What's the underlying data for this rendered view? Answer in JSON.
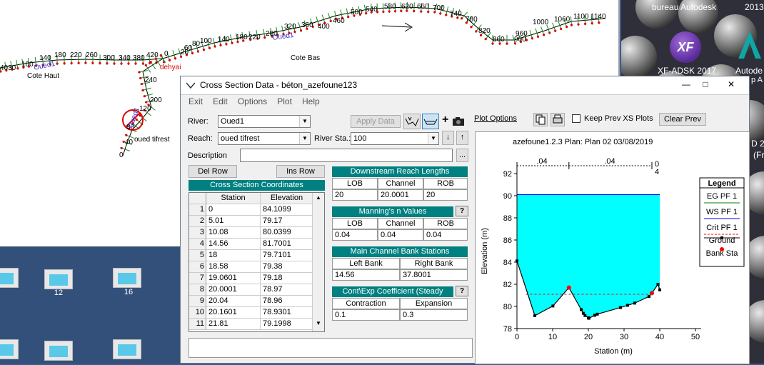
{
  "schematic": {
    "station_labels": [
      "4030",
      "100",
      "140",
      "180",
      "220",
      "260",
      "300",
      "340",
      "380",
      "420",
      "0",
      "20",
      "60",
      "80",
      "100",
      "140",
      "180",
      "220",
      "280",
      "320",
      "360",
      "400",
      "460",
      "500",
      "540",
      "580",
      "620",
      "660",
      "700",
      "740",
      "780",
      "820",
      "860",
      "900",
      "960",
      "1000",
      "1060",
      "1100",
      "1140",
      "240",
      "200",
      "120",
      "80",
      "40",
      "0"
    ],
    "oued_labels": [
      "Oued1",
      "Oued1",
      "Oued1"
    ],
    "cote_haut": "Cote Haut",
    "cote_bas": "Cote Bas",
    "junction": "dehyai",
    "tributary": "oued tifrest"
  },
  "desktop": {
    "icons": [
      {
        "label": ""
      },
      {
        "label": "12"
      },
      {
        "label": "16"
      },
      {
        "label": ""
      },
      {
        "label": ""
      },
      {
        "label": ""
      }
    ],
    "right_top_left": "bureau Autodesk",
    "right_top_right": "2013",
    "xf_label": "XF-ADSK 2017",
    "autode_label": "Autode",
    "autode_label2": "p A",
    "side_text1": "D 2",
    "side_text2": "(Fr",
    "xf_badge": "XF"
  },
  "dialog": {
    "title": "Cross Section Data - béton_azefoune123",
    "menu": [
      "Exit",
      "Edit",
      "Options",
      "Plot",
      "Help"
    ],
    "river_label": "River:",
    "river_value": "Oued1",
    "reach_label": "Reach:",
    "reach_value": "oued tifrest",
    "river_sta_label": "River Sta.:",
    "river_sta_value": "100",
    "apply_data": "Apply Data",
    "description_label": "Description",
    "del_row": "Del Row",
    "ins_row": "Ins Row",
    "xs_coords_title": "Cross Section Coordinates",
    "col_station": "Station",
    "col_elevation": "Elevation",
    "rows": [
      {
        "n": "1",
        "station": "0",
        "elev": "84.1099"
      },
      {
        "n": "2",
        "station": "5.01",
        "elev": "79.17"
      },
      {
        "n": "3",
        "station": "10.08",
        "elev": "80.0399"
      },
      {
        "n": "4",
        "station": "14.56",
        "elev": "81.7001"
      },
      {
        "n": "5",
        "station": "18",
        "elev": "79.7101"
      },
      {
        "n": "6",
        "station": "18.58",
        "elev": "79.38"
      },
      {
        "n": "7",
        "station": "19.0601",
        "elev": "79.18"
      },
      {
        "n": "8",
        "station": "20.0001",
        "elev": "78.97"
      },
      {
        "n": "9",
        "station": "20.04",
        "elev": "78.96"
      },
      {
        "n": "10",
        "station": "20.1601",
        "elev": "78.9301"
      },
      {
        "n": "11",
        "station": "21.81",
        "elev": "79.1998"
      }
    ],
    "downstream_title": "Downstream Reach Lengths",
    "lob": "LOB",
    "channel": "Channel",
    "rob": "ROB",
    "ds_lob": "20",
    "ds_channel": "20.0001",
    "ds_rob": "20",
    "manning_title": "Manning's n Values",
    "n_lob": "0.04",
    "n_channel": "0.04",
    "n_rob": "0.04",
    "bank_title": "Main Channel Bank Stations",
    "left_bank_label": "Left Bank",
    "right_bank_label": "Right Bank",
    "left_bank": "14.56",
    "right_bank": "37.8001",
    "cont_title": "Cont\\Exp Coefficient (Steady Flow)",
    "contraction_label": "Contraction",
    "expansion_label": "Expansion",
    "contraction": "0.1",
    "expansion": "0.3",
    "plot_options": "Plot Options",
    "keep_prev": "Keep Prev XS Plots",
    "clear_prev": "Clear Prev",
    "help_q": "?"
  },
  "chart_data": {
    "type": "line",
    "title": "azefoune1.2.3     Plan: Plan 02     03/08/2019",
    "xlabel": "Station (m)",
    "ylabel": "Elevation (m)",
    "xlim": [
      0,
      50
    ],
    "ylim": [
      78,
      92
    ],
    "xticks": [
      0,
      10,
      20,
      30,
      40,
      50
    ],
    "yticks": [
      78,
      80,
      82,
      84,
      86,
      88,
      90,
      92
    ],
    "ground": {
      "x": [
        0,
        5.01,
        10.08,
        14.56,
        18,
        18.58,
        19.0601,
        20.0001,
        20.04,
        20.1601,
        21.81,
        22.5,
        29,
        31,
        33,
        37,
        37.8001,
        39.5,
        40
      ],
      "y": [
        84.1099,
        79.17,
        80.0399,
        81.7001,
        79.7101,
        79.38,
        79.18,
        78.97,
        78.96,
        78.9301,
        79.1998,
        79.3,
        79.9,
        80.1,
        80.3,
        80.9,
        81.2,
        82.0,
        81.5
      ]
    },
    "ws_elevation": 90.1,
    "crit_elevation": 81.1,
    "bank_stations": [
      14.56,
      37.8001
    ],
    "n_labels": [
      ".04",
      ".04",
      "0"
    ],
    "n_extra": "4",
    "legend": {
      "title": "Legend",
      "items": [
        "EG PF 1",
        "WS PF 1",
        "Crit PF 1",
        "Ground",
        "Bank Sta"
      ]
    },
    "colors": {
      "ws_fill": "#00ffff",
      "crit": "#ff0000",
      "eg": "#008000",
      "ws": "#0000ff",
      "ground": "#000000",
      "bank": "#ff0000"
    }
  }
}
